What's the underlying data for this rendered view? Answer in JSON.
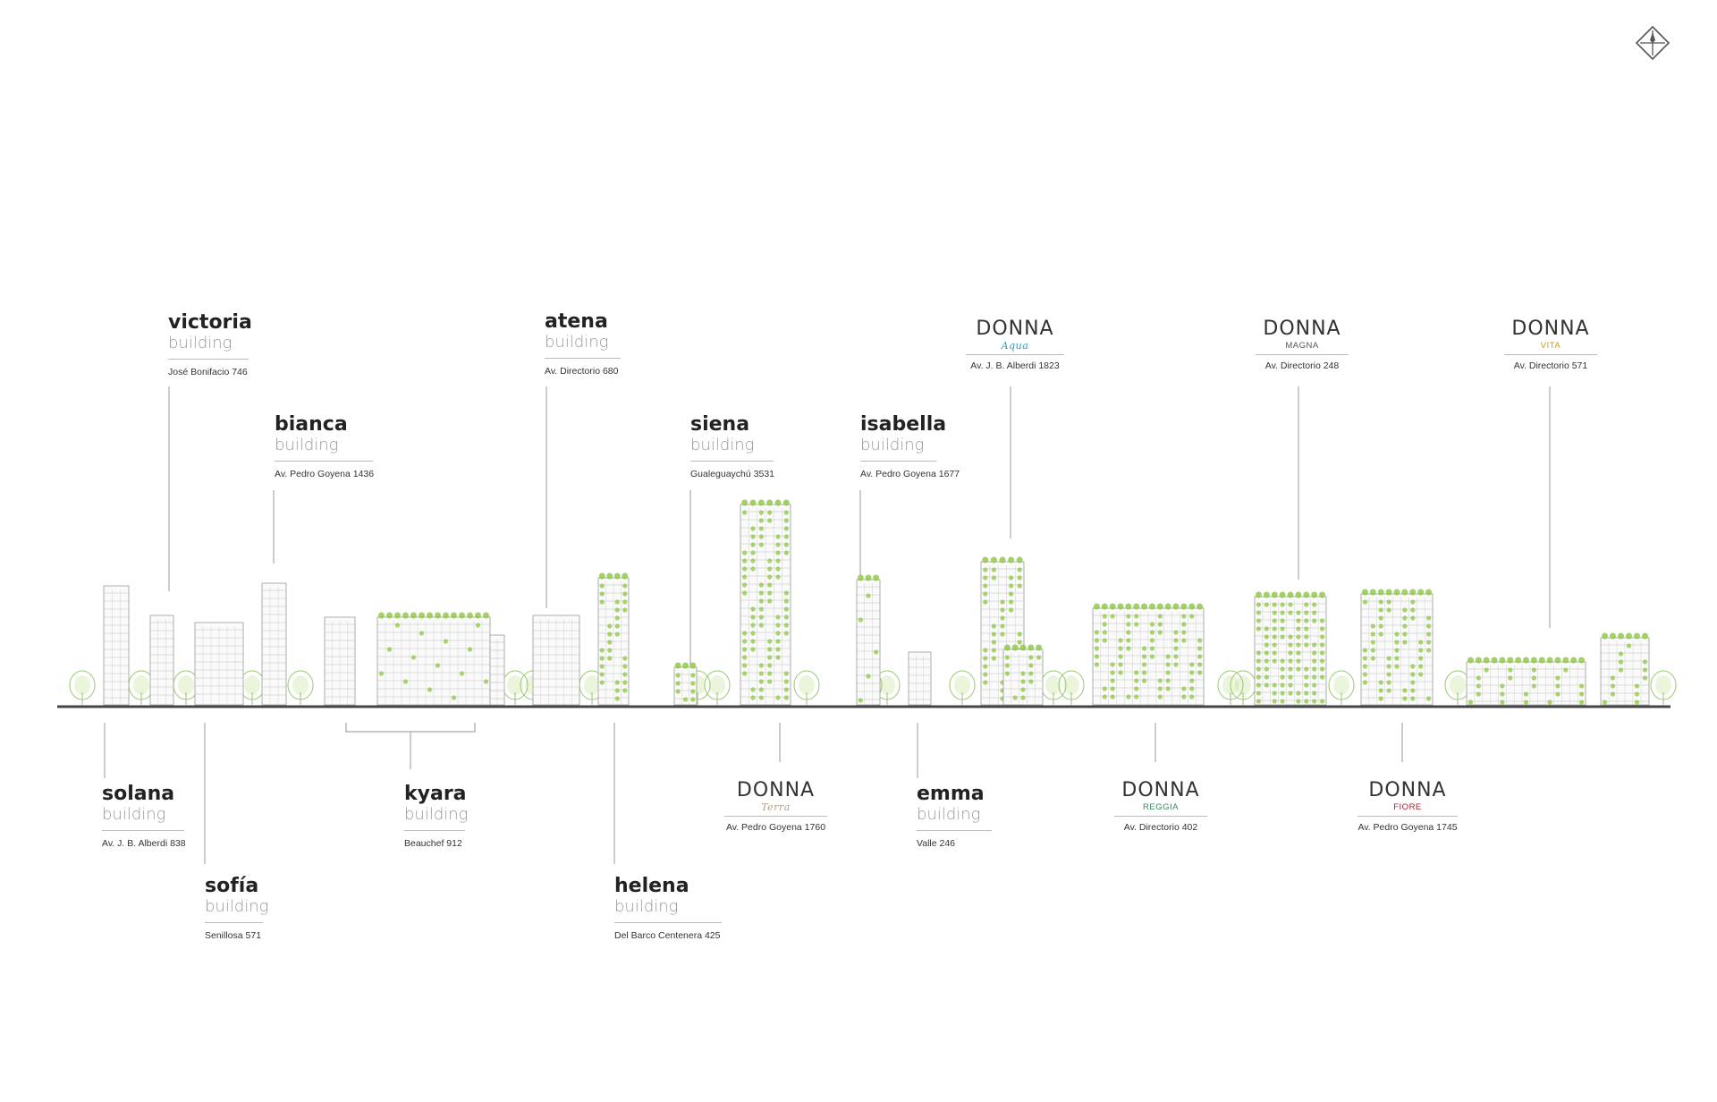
{
  "colors": {
    "ground": "#444444",
    "leader": "#aaaaaa",
    "green": "#8cc63f",
    "building_line": "#9a9a9a",
    "aqua": "#2aa1c9",
    "magna": "#333333",
    "vita": "#b8a02a",
    "terra": "#b5a48a",
    "reggia": "#2e8b57",
    "fiore": "#a0202a"
  },
  "icons": {
    "compass": "compass-icon"
  },
  "labels": [
    {
      "id": "victoria",
      "name": "victoria",
      "sub": "building",
      "address": "José Bonifacio 746"
    },
    {
      "id": "bianca",
      "name": "bianca",
      "sub": "building",
      "address": "Av. Pedro Goyena 1436"
    },
    {
      "id": "atena",
      "name": "atena",
      "sub": "building",
      "address": "Av. Directorio 680"
    },
    {
      "id": "siena",
      "name": "siena",
      "sub": "building",
      "address": "Gualeguaychú 3531"
    },
    {
      "id": "isabella",
      "name": "isabella",
      "sub": "building",
      "address": "Av. Pedro Goyena 1677"
    },
    {
      "id": "solana",
      "name": "solana",
      "sub": "building",
      "address": "Av. J. B. Alberdi 838"
    },
    {
      "id": "sofia",
      "name": "sofía",
      "sub": "building",
      "address": "Senillosa 571"
    },
    {
      "id": "kyara",
      "name": "kyara",
      "sub": "building",
      "address": "Beauchef 912"
    },
    {
      "id": "helena",
      "name": "helena",
      "sub": "building",
      "address": "Del Barco Centenera 425"
    },
    {
      "id": "emma",
      "name": "emma",
      "sub": "building",
      "address": "Valle 246"
    }
  ],
  "brands": [
    {
      "id": "aqua",
      "logo": "DONNA",
      "tag": "Aqua",
      "address": "Av. J. B. Alberdi 1823"
    },
    {
      "id": "magna",
      "logo": "DONNA",
      "tag": "MAGNA",
      "address": "Av. Directorio 248"
    },
    {
      "id": "vita",
      "logo": "DONNA",
      "tag": "VITA",
      "address": "Av. Directorio 571"
    },
    {
      "id": "terra",
      "logo": "DONNA",
      "tag": "Terra",
      "address": "Av. Pedro Goyena 1760"
    },
    {
      "id": "reggia",
      "logo": "DONNA",
      "tag": "REGGIA",
      "address": "Av. Directorio 402"
    },
    {
      "id": "fiore",
      "logo": "DONNA",
      "tag": "FIORE",
      "address": "Av. Pedro Goyena 1745"
    }
  ]
}
